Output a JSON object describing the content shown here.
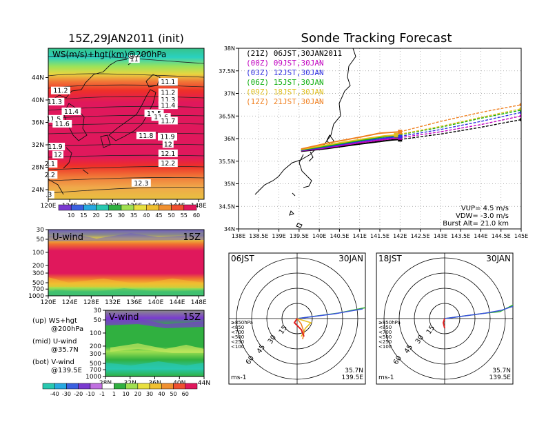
{
  "colors": {
    "track_21z": "#000000",
    "track_00z": "#c000c0",
    "track_03z": "#3030e0",
    "track_06z": "#10b010",
    "track_09z": "#e0c020",
    "track_12z": "#f08020"
  },
  "chart_data": [
    {
      "type": "heatmap",
      "panel": "ws-map",
      "title": "15Z,29JAN2011 (init)",
      "label": "WS(m/s)+hgt(km)@200hPa",
      "x_ticks": [
        "120E",
        "124E",
        "128E",
        "132E",
        "136E",
        "140E",
        "144E",
        "148E"
      ],
      "y_ticks": [
        "24N",
        "28N",
        "32N",
        "36N",
        "40N",
        "44N"
      ],
      "xlim": [
        120,
        149
      ],
      "ylim": [
        22.5,
        47
      ],
      "colorbar": [
        "10",
        "15",
        "20",
        "25",
        "30",
        "35",
        "40",
        "45",
        "50",
        "55",
        "60"
      ],
      "contours": [
        {
          "label": "11",
          "lon": 136,
          "lat": 45.2
        },
        {
          "label": "11.1",
          "lon": 142.3,
          "lat": 41.5
        },
        {
          "label": "11.2",
          "lon": 122.3,
          "lat": 40.1
        },
        {
          "label": "11.2",
          "lon": 142.3,
          "lat": 39.8
        },
        {
          "label": "11.3",
          "lon": 121.2,
          "lat": 38.3
        },
        {
          "label": "11.3",
          "lon": 142.3,
          "lat": 38.6
        },
        {
          "label": "11.4",
          "lon": 124.3,
          "lat": 36.7
        },
        {
          "label": "11.4",
          "lon": 142.3,
          "lat": 37.7
        },
        {
          "label": "11.5",
          "lon": 121.0,
          "lat": 35.5
        },
        {
          "label": "11.5",
          "lon": 139.7,
          "lat": 36.4
        },
        {
          "label": "11.6",
          "lon": 122.6,
          "lat": 34.7
        },
        {
          "label": "11.6",
          "lon": 141.0,
          "lat": 35.8
        },
        {
          "label": "11.7",
          "lon": 142.3,
          "lat": 35.2
        },
        {
          "label": "11.8",
          "lon": 138.2,
          "lat": 32.8
        },
        {
          "label": "11.9",
          "lon": 121.3,
          "lat": 31.0
        },
        {
          "label": "11.9",
          "lon": 142.2,
          "lat": 32.6
        },
        {
          "label": "12",
          "lon": 121.8,
          "lat": 29.7
        },
        {
          "label": "12",
          "lon": 142.3,
          "lat": 31.4
        },
        {
          "label": "12.1",
          "lon": 142.3,
          "lat": 29.9
        },
        {
          "label": "2.1",
          "lon": 120.3,
          "lat": 28.2
        },
        {
          "label": "12.2",
          "lon": 142.3,
          "lat": 28.3
        },
        {
          "label": "2.2",
          "lon": 120.3,
          "lat": 26.4
        },
        {
          "label": "12.3",
          "lon": 137.3,
          "lat": 25.1
        },
        {
          "label": ".3",
          "lon": 120.1,
          "lat": 23.2
        }
      ]
    },
    {
      "type": "heatmap",
      "panel": "u-wind",
      "label": "U-wind",
      "time_label": "15Z",
      "x_ticks": [
        "120E",
        "124E",
        "128E",
        "132E",
        "136E",
        "140E",
        "144E",
        "148E"
      ],
      "y_ticks": [
        "30",
        "50",
        "100",
        "200",
        "300",
        "500",
        "700",
        "1000"
      ]
    },
    {
      "type": "heatmap",
      "panel": "v-wind",
      "label": "V-wind",
      "time_label": "15Z",
      "x_ticks": [
        "28N",
        "32N",
        "36N",
        "40N",
        "44N"
      ],
      "y_ticks": [
        "30",
        "50",
        "100",
        "200",
        "300",
        "500",
        "700",
        "1000"
      ],
      "colorbar": [
        "-40",
        "-30",
        "-20",
        "-10",
        "-1",
        "1",
        "10",
        "20",
        "30",
        "40",
        "50",
        "60"
      ]
    },
    {
      "type": "line",
      "panel": "sonde-tracks",
      "title": "Sonde Tracking Forecast",
      "x_ticks": [
        "138E",
        "138.5E",
        "139E",
        "139.5E",
        "140E",
        "140.5E",
        "141E",
        "141.5E",
        "142E",
        "142.5E",
        "143E",
        "143.5E",
        "144E",
        "144.5E",
        "145E"
      ],
      "y_ticks": [
        "34N",
        "34.5N",
        "35N",
        "35.5N",
        "36N",
        "36.5N",
        "37N",
        "37.5N",
        "38N"
      ],
      "xlim": [
        138,
        145
      ],
      "ylim": [
        34,
        38
      ],
      "grid": true,
      "series": [
        {
          "name": "(21Z)  06JST,30JAN2011",
          "color_key": "track_21z",
          "x": [
            139.55,
            140.2,
            141.0,
            141.8,
            142.0,
            143.0,
            144.0,
            145.0
          ],
          "y": [
            35.72,
            35.78,
            35.88,
            35.97,
            35.98,
            36.1,
            36.25,
            36.42
          ]
        },
        {
          "name": "(00Z)  09JST,30JAN",
          "color_key": "track_00z",
          "x": [
            139.55,
            140.2,
            141.0,
            141.8,
            142.0,
            143.0,
            144.0,
            145.0
          ],
          "y": [
            35.73,
            35.8,
            35.91,
            36.0,
            36.02,
            36.15,
            36.31,
            36.5
          ]
        },
        {
          "name": "(03Z)  12JST,30JAN",
          "color_key": "track_03z",
          "x": [
            139.55,
            140.2,
            141.0,
            141.8,
            142.0,
            143.0,
            144.0,
            145.0
          ],
          "y": [
            35.74,
            35.82,
            35.94,
            36.03,
            36.05,
            36.2,
            36.38,
            36.58
          ]
        },
        {
          "name": "(06Z)  15JST,30JAN",
          "color_key": "track_06z",
          "x": [
            139.55,
            140.2,
            141.0,
            141.6,
            141.9,
            143.0,
            144.0,
            145.0
          ],
          "y": [
            35.75,
            35.84,
            35.96,
            36.04,
            36.07,
            36.25,
            36.45,
            36.63
          ]
        },
        {
          "name": "(09Z)  18JST,30JAN",
          "color_key": "track_09z",
          "x": [
            139.55,
            140.2,
            141.0,
            141.6,
            141.9,
            143.0,
            144.0,
            145.0
          ],
          "y": [
            35.76,
            35.86,
            35.98,
            36.06,
            36.08,
            36.27,
            36.47,
            36.66
          ]
        },
        {
          "name": "(12Z)  21JST,30JAN",
          "color_key": "track_12z",
          "x": [
            139.55,
            140.2,
            141.0,
            141.5,
            142.0,
            143.0,
            144.0,
            145.0
          ],
          "y": [
            35.77,
            35.9,
            36.03,
            36.12,
            36.15,
            36.38,
            36.58,
            36.75
          ]
        }
      ],
      "info": [
        "VUP=  4.5 m/s",
        "VDW= -3.0 m/s",
        "Burst Alt= 21.0 km"
      ]
    },
    {
      "type": "scatter",
      "panel": "polar-06jst",
      "time_label": "06JST",
      "date_label": "30JAN",
      "ring_labels": [
        "15",
        "30",
        "45",
        "60"
      ],
      "legend": [
        "≥850hPa",
        "<850",
        "<700",
        "<500",
        "<250",
        "<100"
      ],
      "unit": "ms-1",
      "location": [
        "35.7N",
        "139.5E"
      ]
    },
    {
      "type": "scatter",
      "panel": "polar-18jst",
      "time_label": "18JST",
      "date_label": "30JAN",
      "ring_labels": [
        "15",
        "30",
        "45",
        "60"
      ],
      "legend": [
        "≥850hPa",
        "<850",
        "<700",
        "<500",
        "<250",
        "<100"
      ],
      "unit": "ms-1",
      "location": [
        "35.7N",
        "139.5E"
      ]
    }
  ],
  "left_legend": [
    {
      "a": "(up) WS+hgt",
      "b": "@200hPa"
    },
    {
      "a": "(mid) U-wind",
      "b": "@35.7N"
    },
    {
      "a": "(bot) V-wind",
      "b": "@139.5E"
    }
  ]
}
